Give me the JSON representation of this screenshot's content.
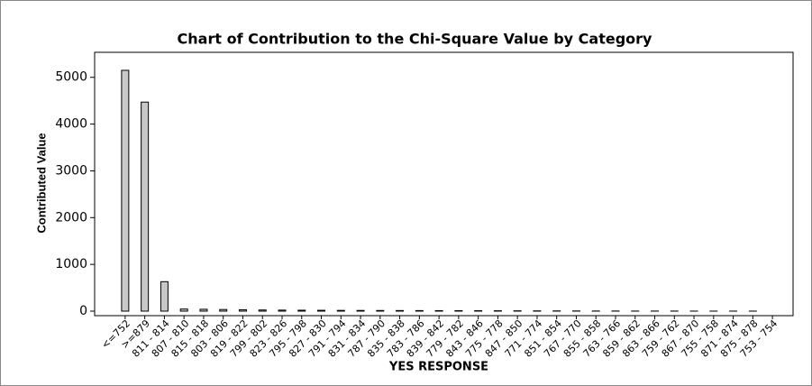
{
  "chart_data": {
    "type": "bar",
    "title": "Chart of Contribution to the Chi-Square Value by Category",
    "xlabel": "YES RESPONSE",
    "ylabel": "Contributed Value",
    "categories": [
      "<=752",
      ">=879",
      "811 - 814",
      "807 - 810",
      "815 - 818",
      "803 - 806",
      "819 - 822",
      "799 - 802",
      "823 - 826",
      "795 - 798",
      "827 - 830",
      "791 - 794",
      "831 - 834",
      "787 - 790",
      "835 - 838",
      "783 - 786",
      "839 - 842",
      "779 - 782",
      "843 - 846",
      "775 - 778",
      "847 - 850",
      "771 - 774",
      "851 - 854",
      "767 - 770",
      "855 - 858",
      "763 - 766",
      "859 - 862",
      "863 - 866",
      "759 - 762",
      "867 - 870",
      "755 - 758",
      "871 - 874",
      "875 - 878",
      "753 - 754"
    ],
    "values": [
      5150,
      4470,
      630,
      45,
      40,
      35,
      30,
      25,
      22,
      20,
      18,
      16,
      15,
      14,
      13,
      12,
      11,
      10,
      9,
      8,
      7,
      6,
      5,
      4,
      3,
      3,
      2,
      2,
      2,
      1,
      1,
      1,
      1,
      0
    ],
    "color": "#c8c8c8",
    "ylim": [
      0,
      5400
    ],
    "yticks": [
      0,
      1000,
      2000,
      3000,
      4000,
      5000
    ],
    "grid": false
  }
}
